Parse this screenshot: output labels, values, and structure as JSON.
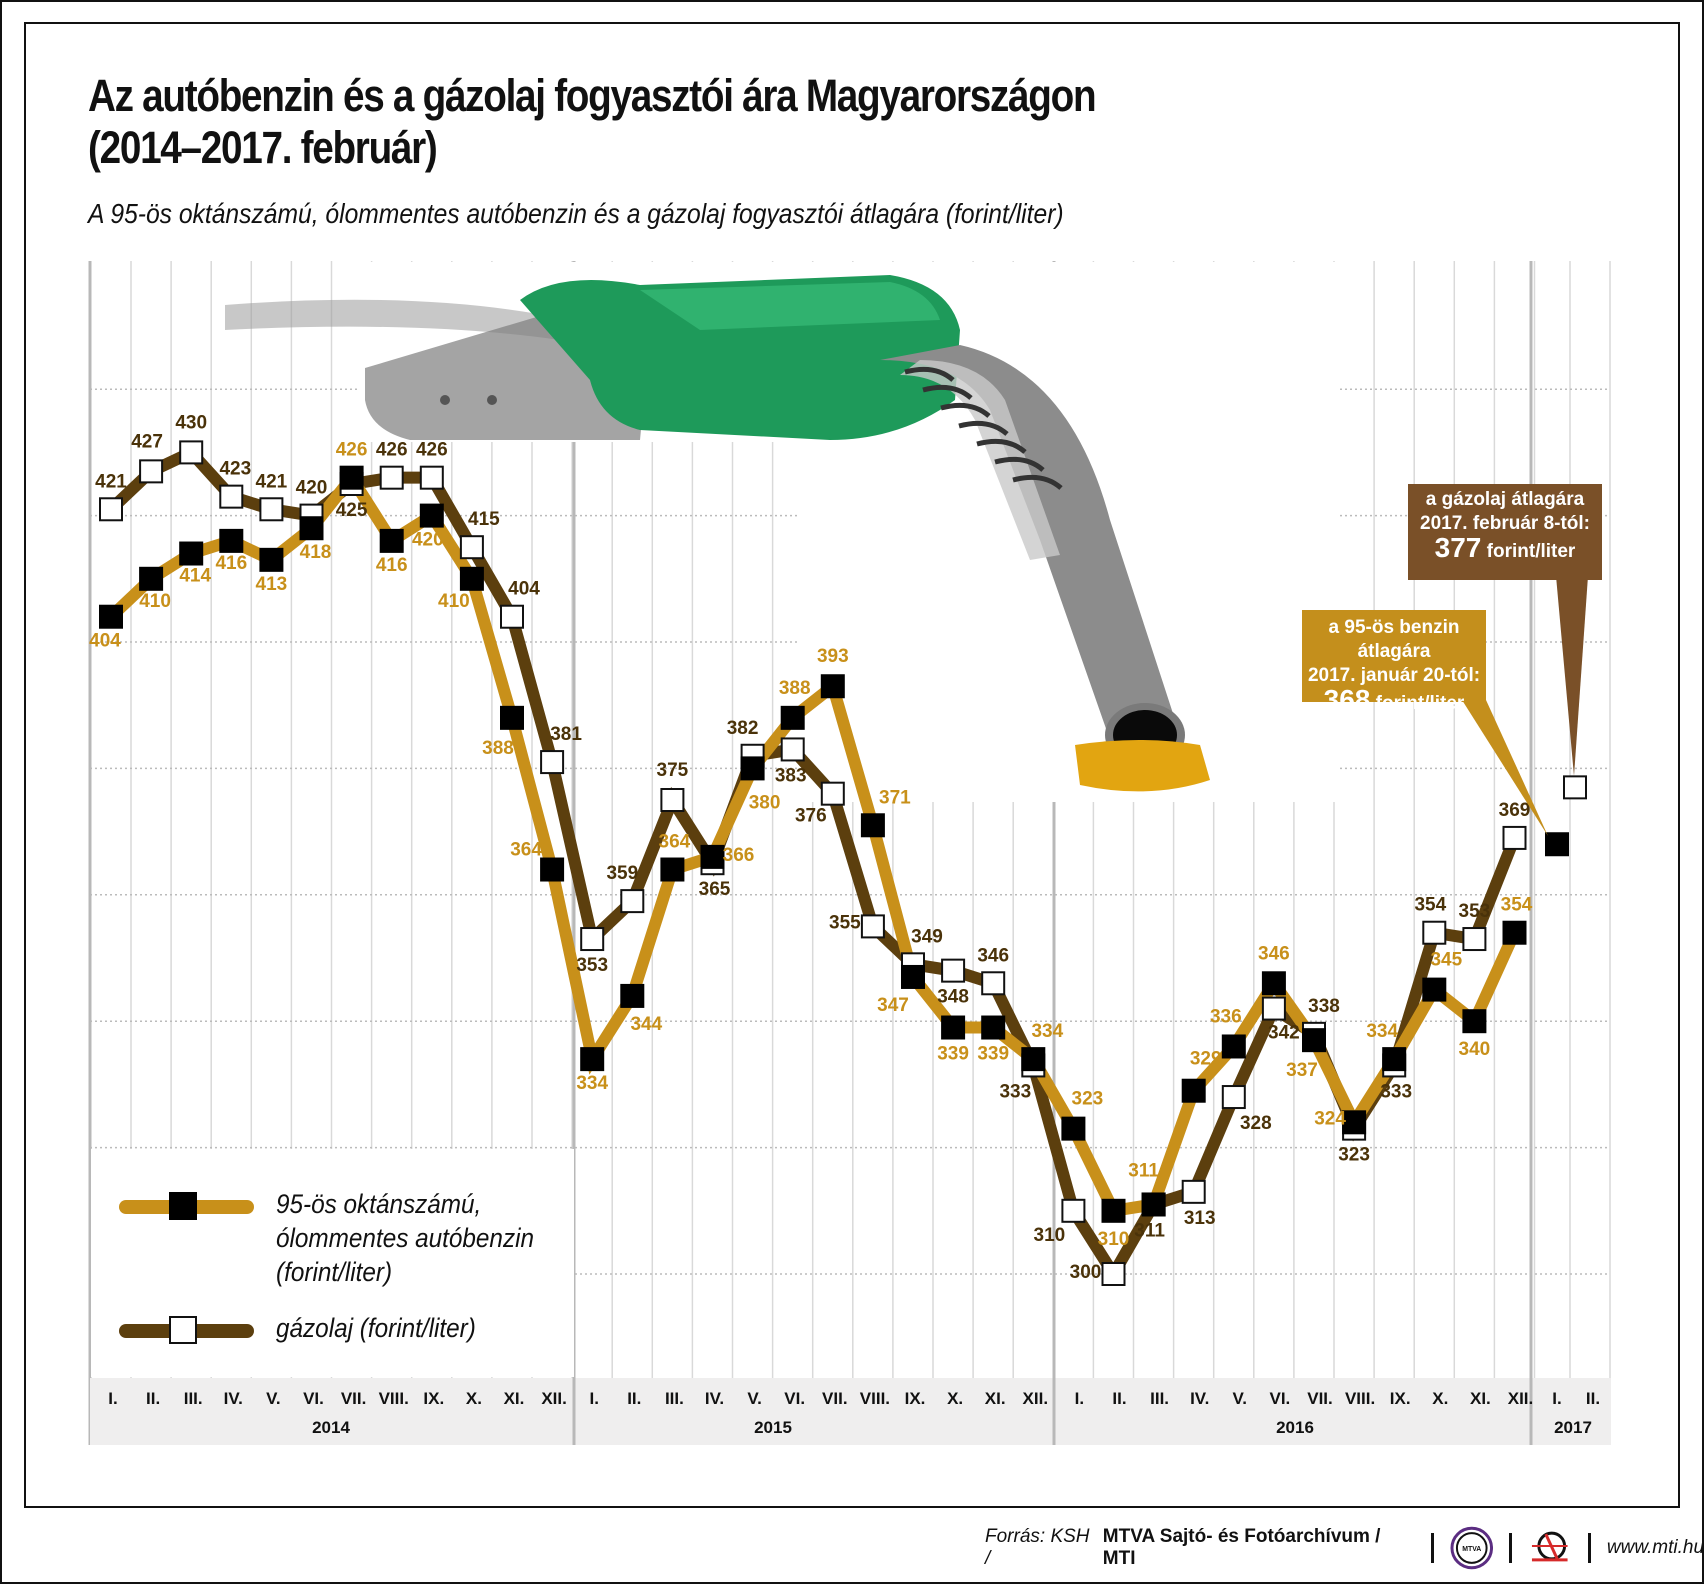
{
  "header": {
    "title_line1": "Az autóbenzin és a gázolaj fogyasztói ára Magyarországon",
    "title_line2": "(2014–2017. február)",
    "subtitle": "A 95-ös oktánszámú, ólommentes autóbenzin és a gázolaj fogyasztói átlagára (forint/liter)"
  },
  "legend": {
    "benzin": "95-ös oktánszámú,\nólommentes autóbenzin\n(forint/liter)",
    "diesel": "gázolaj (forint/liter)"
  },
  "callouts": {
    "diesel": {
      "line1": "a gázolaj átlagára",
      "line2": "2017. február 8-tól:",
      "value": "377",
      "unit": "forint/liter"
    },
    "benzin": {
      "line1": "a 95-ös benzin átlagára",
      "line2": "2017. január 20-tól:",
      "value": "368",
      "unit": "forint/liter"
    }
  },
  "footer": {
    "source_prefix": "Forrás: KSH / ",
    "source_bold": "MTVA Sajtó- és Fotóarchívum / MTI",
    "logo1_text": "MTVA",
    "url": "www.mti.hu"
  },
  "colors": {
    "benzin_line": "#C8901A",
    "diesel_line": "#5C3F0E",
    "benzin_label": "#C8901A",
    "diesel_label": "#4A3209",
    "callout_diesel": "#7A5028",
    "callout_benzin": "#C48F1C",
    "axis_band": "#EFEEEE",
    "grid": "#D9D9D9"
  },
  "chart_data": {
    "type": "line",
    "title": "Az autóbenzin és a gázolaj fogyasztói ára Magyarországon (2014–2017. február)",
    "subtitle": "A 95-ös oktánszámú, ólommentes autóbenzin és a gázolaj fogyasztói átlagára (forint/liter)",
    "xlabel": "",
    "ylabel": "forint/liter",
    "ylim": [
      300,
      440
    ],
    "grid": true,
    "legend_position": "lower-left",
    "months": [
      "I.",
      "II.",
      "III.",
      "IV.",
      "V.",
      "VI.",
      "VII.",
      "VIII.",
      "IX.",
      "X.",
      "XI.",
      "XII."
    ],
    "months_2017": [
      "I.",
      "II."
    ],
    "years": [
      "2014",
      "2015",
      "2016",
      "2017"
    ],
    "x": [
      "2014-01",
      "2014-02",
      "2014-03",
      "2014-04",
      "2014-05",
      "2014-06",
      "2014-07",
      "2014-08",
      "2014-09",
      "2014-10",
      "2014-11",
      "2014-12",
      "2015-01",
      "2015-02",
      "2015-03",
      "2015-04",
      "2015-05",
      "2015-06",
      "2015-07",
      "2015-08",
      "2015-09",
      "2015-10",
      "2015-11",
      "2015-12",
      "2016-01",
      "2016-02",
      "2016-03",
      "2016-04",
      "2016-05",
      "2016-06",
      "2016-07",
      "2016-08",
      "2016-09",
      "2016-10",
      "2016-11",
      "2016-12"
    ],
    "series": [
      {
        "name": "95-ös oktánszámú, ólommentes autóbenzin (forint/liter)",
        "values": [
          404,
          410,
          414,
          416,
          413,
          418,
          426,
          416,
          420,
          410,
          388,
          364,
          334,
          344,
          364,
          366,
          380,
          388,
          393,
          371,
          347,
          339,
          339,
          334,
          323,
          310,
          311,
          329,
          336,
          346,
          337,
          324,
          334,
          345,
          340,
          354
        ],
        "extra_point": {
          "x": "2017-01",
          "value": 368,
          "labelled": false
        },
        "labels": [
          "404",
          "410",
          "414",
          "416",
          "413",
          "418",
          "426",
          "416",
          "420",
          "410",
          "388",
          "364",
          "334",
          "344",
          "364",
          "366",
          "380",
          "388",
          "393",
          "371",
          "347",
          "339",
          "339",
          "334",
          "323",
          "310",
          "311",
          "329",
          "336",
          "346",
          "337",
          "324",
          "334",
          "345",
          "340",
          "354"
        ],
        "label_offsets": [
          [
            -6,
            30
          ],
          [
            4,
            28
          ],
          [
            4,
            28
          ],
          [
            0,
            28
          ],
          [
            0,
            30
          ],
          [
            4,
            30
          ],
          [
            0,
            -22
          ],
          [
            0,
            30
          ],
          [
            -4,
            30
          ],
          [
            -18,
            28
          ],
          [
            -14,
            36
          ],
          [
            -26,
            -14
          ],
          [
            0,
            30
          ],
          [
            14,
            34
          ],
          [
            2,
            -22
          ],
          [
            26,
            4
          ],
          [
            12,
            40
          ],
          [
            2,
            -24
          ],
          [
            0,
            -24
          ],
          [
            22,
            -22
          ],
          [
            -20,
            34
          ],
          [
            0,
            32
          ],
          [
            0,
            32
          ],
          [
            14,
            -22
          ],
          [
            14,
            -24
          ],
          [
            0,
            34
          ],
          [
            -10,
            -28
          ],
          [
            12,
            -26
          ],
          [
            -8,
            -24
          ],
          [
            0,
            -24
          ],
          [
            -12,
            36
          ],
          [
            -24,
            2
          ],
          [
            -12,
            -22
          ],
          [
            12,
            -24
          ],
          [
            0,
            34
          ],
          [
            2,
            -22
          ]
        ]
      },
      {
        "name": "gázolaj (forint/liter)",
        "values": [
          421,
          427,
          430,
          423,
          421,
          420,
          425,
          426,
          426,
          415,
          404,
          381,
          353,
          359,
          375,
          365,
          382,
          383,
          376,
          355,
          349,
          348,
          346,
          333,
          310,
          300,
          311,
          313,
          328,
          342,
          338,
          323,
          333,
          354,
          353,
          369
        ],
        "extra_point": {
          "x": "2017-02",
          "value": 377,
          "labelled": false
        },
        "labels": [
          "421",
          "427",
          "430",
          "423",
          "421",
          "420",
          "425",
          "426",
          "426",
          "415",
          "404",
          "381",
          "353",
          "359",
          "375",
          "365",
          "382",
          "383",
          "376",
          "355",
          "349",
          "348",
          "346",
          "333",
          "310",
          "300",
          "311",
          "313",
          "328",
          "342",
          "338",
          "323",
          "333",
          "354",
          "353",
          "369"
        ],
        "label_offsets": [
          [
            0,
            -22
          ],
          [
            -4,
            -24
          ],
          [
            0,
            -24
          ],
          [
            4,
            -22
          ],
          [
            0,
            -22
          ],
          [
            0,
            -22
          ],
          [
            0,
            32
          ],
          [
            0,
            -22
          ],
          [
            0,
            -22
          ],
          [
            12,
            -22
          ],
          [
            12,
            -22
          ],
          [
            14,
            -22
          ],
          [
            0,
            32
          ],
          [
            -10,
            -22
          ],
          [
            0,
            -24
          ],
          [
            2,
            32
          ],
          [
            -10,
            -22
          ],
          [
            -2,
            32
          ],
          [
            -22,
            28
          ],
          [
            -28,
            2
          ],
          [
            14,
            -22
          ],
          [
            0,
            32
          ],
          [
            0,
            -22
          ],
          [
            -18,
            32
          ],
          [
            -24,
            30
          ],
          [
            -28,
            4
          ],
          [
            -4,
            32
          ],
          [
            6,
            32
          ],
          [
            22,
            32
          ],
          [
            10,
            30
          ],
          [
            10,
            -22
          ],
          [
            0,
            32
          ],
          [
            2,
            32
          ],
          [
            -4,
            -22
          ],
          [
            0,
            -22
          ],
          [
            0,
            -22
          ]
        ]
      }
    ]
  }
}
